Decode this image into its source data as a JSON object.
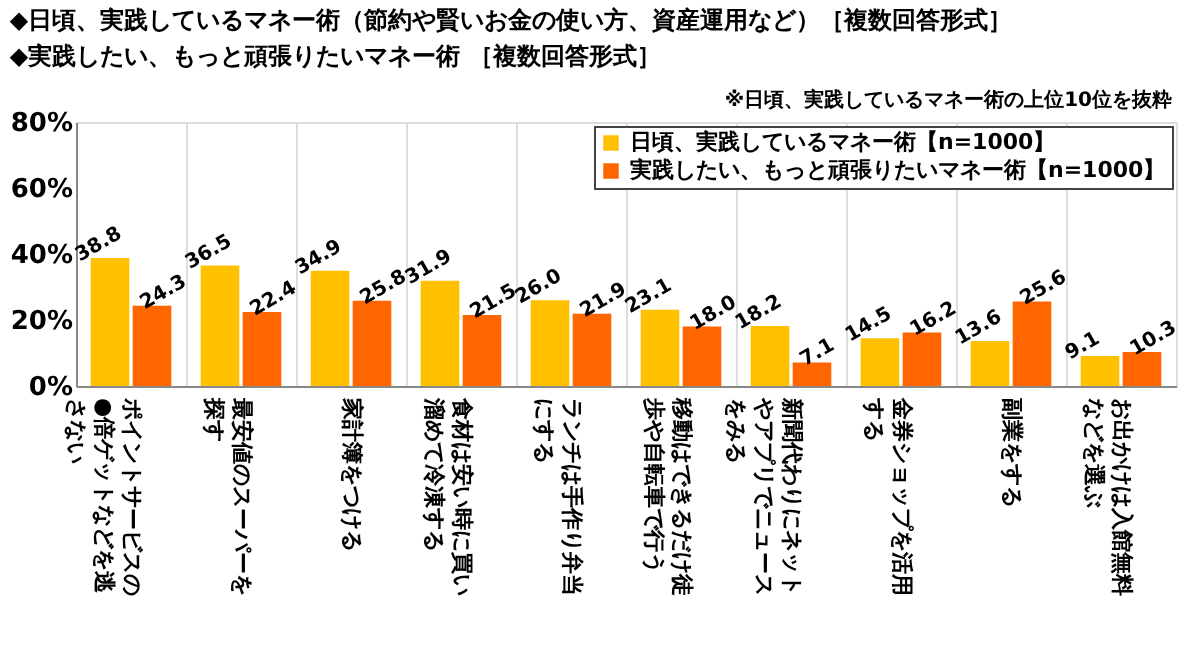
{
  "chart_data": {
    "type": "bar",
    "title": "◆日頃、実践しているマネー術（節約や賢いお金の使い方、資産運用など）［複数回答形式］",
    "subtitle": "◆実践したい、もっと頑張りたいマネー術 ［複数回答形式］",
    "annotations": [
      "※日頃、実践しているマネー術の上位10位を抜粋"
    ],
    "categories": [
      "ポイントサービスの●倍ゲットなどを逃さない",
      "最安値のスーパーを探す",
      "家計簿をつける",
      "食材は安い時に買い溜めて冷凍する",
      "ランチは手作り弁当にする",
      "移動はできるだけ徒歩や自転車で行う",
      "新聞代わりにネットやアプリでニュースをみる",
      "金券ショップを活用する",
      "副業をする",
      "お出かけは入館無料などを選ぶ"
    ],
    "series": [
      {
        "name": "日頃、実践しているマネー術【n=1000】",
        "color": "#ffc000",
        "values": [
          38.8,
          36.5,
          34.9,
          31.9,
          26.0,
          23.1,
          18.2,
          14.5,
          13.6,
          9.1
        ],
        "value_labels": [
          "38.8",
          "36.5",
          "34.9",
          "31.9",
          "26.0",
          "23.1",
          "18.2",
          "14.5",
          "13.6",
          "9.1"
        ]
      },
      {
        "name": "実践したい、もっと頑張りたいマネー術【n=1000】",
        "color": "#ff6600",
        "values": [
          24.3,
          22.4,
          25.8,
          21.5,
          21.9,
          18.0,
          7.1,
          16.2,
          25.6,
          10.3
        ],
        "value_labels": [
          "24.3",
          "22.4",
          "25.8",
          "21.5",
          "21.9",
          "18.0",
          "7.1",
          "16.2",
          "25.6",
          "10.3"
        ]
      }
    ],
    "ylim": [
      0,
      80
    ],
    "yticks": [
      {
        "value": 0,
        "label": "0%"
      },
      {
        "value": 20,
        "label": "20%"
      },
      {
        "value": 40,
        "label": "40%"
      },
      {
        "value": 60,
        "label": "60%"
      },
      {
        "value": 80,
        "label": "80%"
      }
    ],
    "grid": "x",
    "legend": "top right"
  }
}
